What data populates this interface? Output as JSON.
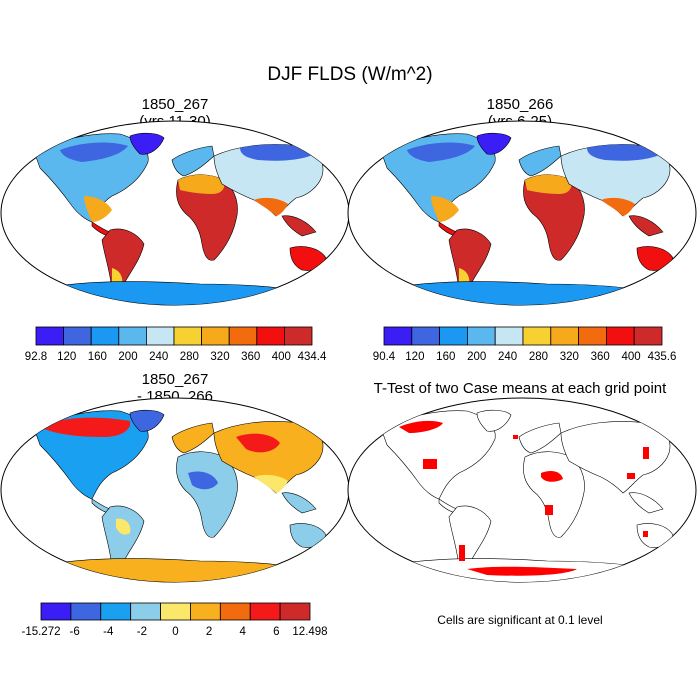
{
  "figure": {
    "title": "DJF FLDS (W/m^2)"
  },
  "panels": [
    {
      "id": "p1",
      "title_line1": "1850_267",
      "title_line2": "(yrs 11-30)",
      "colorbar": {
        "labels": [
          "92.8",
          "120",
          "160",
          "200",
          "240",
          "280",
          "320",
          "360",
          "400",
          "434.4"
        ],
        "colors": [
          "#3a1ef5",
          "#3d66e0",
          "#1a98f2",
          "#5ab8ee",
          "#c6e6f4",
          "#f7d132",
          "#f6a91a",
          "#f26b0f",
          "#f20f0f",
          "#cf2a2a"
        ]
      }
    },
    {
      "id": "p2",
      "title_line1": "1850_266",
      "title_line2": "(yrs 6-25)",
      "colorbar": {
        "labels": [
          "90.4",
          "120",
          "160",
          "200",
          "240",
          "280",
          "320",
          "360",
          "400",
          "435.6"
        ],
        "colors": [
          "#3a1ef5",
          "#3d66e0",
          "#1a98f2",
          "#5ab8ee",
          "#c6e6f4",
          "#f7d132",
          "#f6a91a",
          "#f26b0f",
          "#f20f0f",
          "#cf2a2a"
        ]
      }
    },
    {
      "id": "p3",
      "title_line1": "1850_267",
      "title_line2": "- 1850_266",
      "colorbar": {
        "labels": [
          "-15.272",
          "-6",
          "-4",
          "-2",
          "0",
          "2",
          "4",
          "6",
          "12.498"
        ],
        "colors": [
          "#3a1ef5",
          "#3d66e0",
          "#1aa0f0",
          "#8ccdea",
          "#fbe86a",
          "#f8b01e",
          "#f26b0f",
          "#f51a1a",
          "#cf2a2a"
        ]
      }
    },
    {
      "id": "p4",
      "title_line1": "T-Test of two Case means at each grid point",
      "footnote": "Cells are significant at 0.1 level",
      "significant_color": "#ff0000"
    }
  ]
}
